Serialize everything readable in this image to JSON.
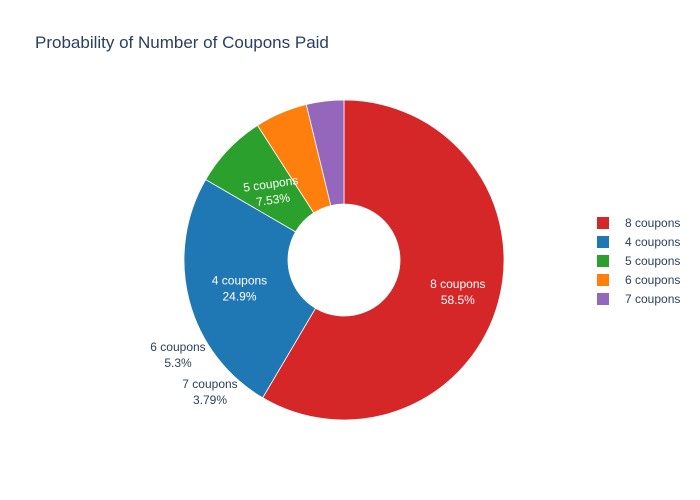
{
  "chart_data": {
    "type": "pie",
    "title": "Probability of Number of Coupons Paid",
    "hole": true,
    "legend_position": "right",
    "slices": [
      {
        "label": "8 coupons",
        "percent": "58.5%",
        "value": 58.5,
        "color": "#d62728"
      },
      {
        "label": "4 coupons",
        "percent": "24.9%",
        "value": 24.9,
        "color": "#1f77b4"
      },
      {
        "label": "5 coupons",
        "percent": "7.53%",
        "value": 7.53,
        "color": "#2ca02c"
      },
      {
        "label": "6 coupons",
        "percent": "5.3%",
        "value": 5.3,
        "color": "#ff7f0e"
      },
      {
        "label": "7 coupons",
        "percent": "3.79%",
        "value": 3.79,
        "color": "#9467bd"
      }
    ]
  }
}
